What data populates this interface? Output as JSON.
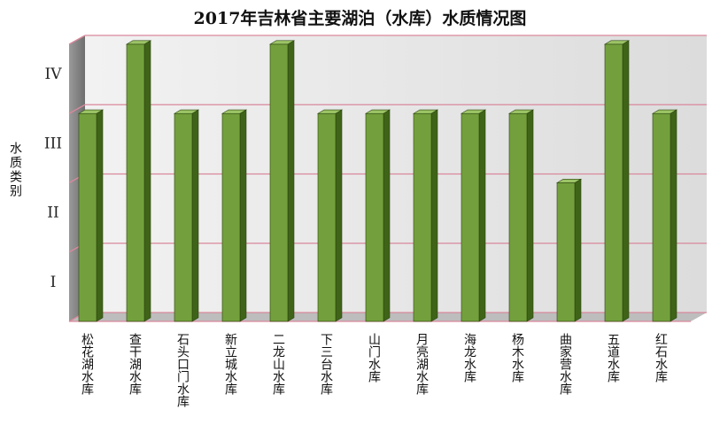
{
  "chart_data": {
    "type": "bar",
    "title": "2017年吉林省主要湖泊（水库）水质情况图",
    "ylabel": "水质类别",
    "xlabel": "",
    "y_ticks": [
      "I",
      "II",
      "III",
      "IV"
    ],
    "ylim": [
      0,
      4
    ],
    "grid": true,
    "categories": [
      "松花湖水库",
      "查干湖水库",
      "石头口门水库",
      "新立城水库",
      "二龙山水库",
      "下三台水库",
      "山门水库",
      "月亮湖水库",
      "海龙水库",
      "杨木水库",
      "曲家营水库",
      "五道水库",
      "红石水库"
    ],
    "values": [
      3,
      4,
      3,
      3,
      4,
      3,
      3,
      3,
      3,
      3,
      2,
      4,
      3
    ]
  },
  "colors": {
    "bar_front": "#73a03c",
    "bar_side": "#3f6418",
    "bar_top": "#9cc466",
    "wall": "#e4e4e4",
    "gridline": "#d9889c"
  }
}
